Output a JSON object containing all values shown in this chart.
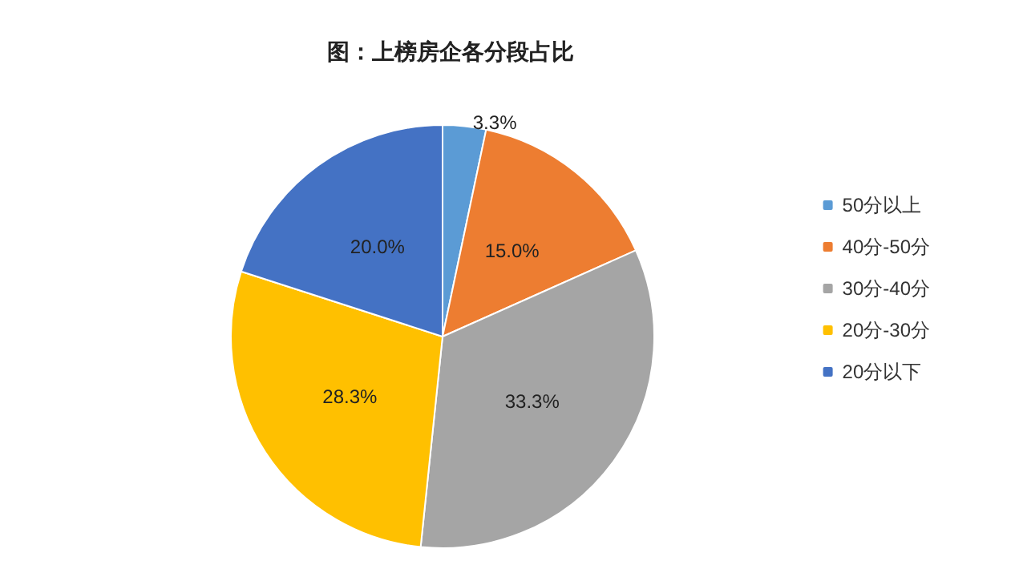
{
  "chart_data": {
    "type": "pie",
    "title": "图：上榜房企各分段占比",
    "categories": [
      "50分以上",
      "40分-50分",
      "30分-40分",
      "20分-30分",
      "20分以下"
    ],
    "values": [
      3.3,
      15.0,
      33.3,
      28.3,
      20.0
    ],
    "value_labels": [
      "3.3%",
      "15.0%",
      "33.3%",
      "28.3%",
      "20.0%"
    ],
    "colors": [
      "#5b9bd5",
      "#ed7d31",
      "#a5a5a5",
      "#ffc000",
      "#4472c4"
    ],
    "legend": "right"
  }
}
